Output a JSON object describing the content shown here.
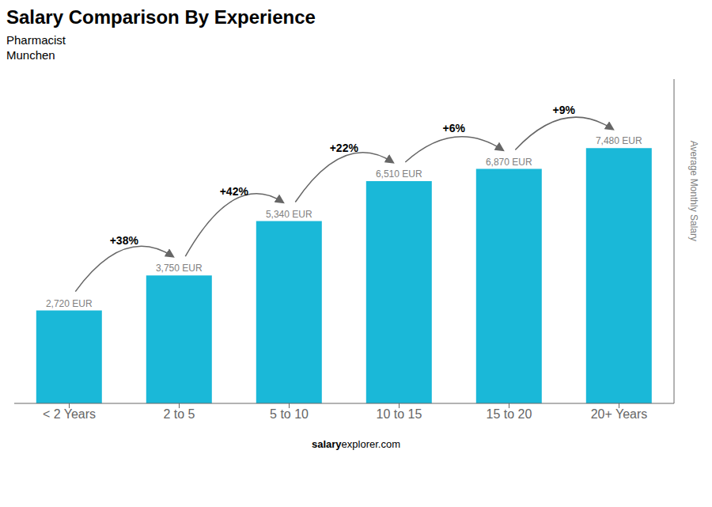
{
  "chart_data": {
    "type": "bar",
    "title": "Salary Comparison By Experience",
    "subtitle": [
      "Pharmacist",
      "Munchen"
    ],
    "ylabel": "Average Monthly Salary",
    "categories": [
      "< 2 Years",
      "2 to 5",
      "5 to 10",
      "10 to 15",
      "15 to 20",
      "20+ Years"
    ],
    "values": [
      2720,
      3750,
      5340,
      6510,
      6870,
      7480
    ],
    "value_labels": [
      "2,720 EUR",
      "3,750 EUR",
      "5,340 EUR",
      "6,510 EUR",
      "6,870 EUR",
      "7,480 EUR"
    ],
    "data_labels": true,
    "annotations": [
      "+38%",
      "+42%",
      "+22%",
      "+6%",
      "+9%"
    ],
    "footer": [
      "salary",
      "explorer.com"
    ],
    "color": "#1ab8d8",
    "ylim": [
      0,
      9500
    ],
    "tick_labels": "x",
    "grid": false
  }
}
